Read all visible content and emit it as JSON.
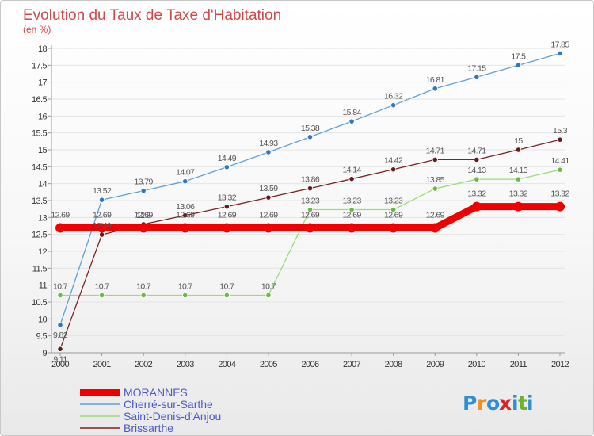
{
  "chart_data": {
    "type": "line",
    "title": "Evolution du Taux de Taxe d'Habitation",
    "unit_label": "(en %)",
    "ylim": [
      9,
      18
    ],
    "yticks": [
      "9",
      "9.5",
      "10",
      "10.5",
      "11",
      "11.5",
      "12",
      "12.5",
      "13",
      "13.5",
      "14",
      "14.5",
      "15",
      "15.5",
      "16",
      "16.5",
      "17",
      "17.5",
      "18"
    ],
    "x": [
      "2000",
      "2001",
      "2002",
      "2003",
      "2004",
      "2005",
      "2006",
      "2007",
      "2008",
      "2009",
      "2010",
      "2011",
      "2012"
    ],
    "series": [
      {
        "name": "MORANNES",
        "color": "#ee0000",
        "thick": true,
        "values": [
          12.69,
          12.69,
          12.69,
          12.69,
          12.69,
          12.69,
          12.69,
          12.69,
          12.69,
          12.69,
          13.32,
          13.32,
          13.32
        ],
        "labels": [
          "12.69",
          "12.69",
          "12.69",
          "12.69",
          "12.69",
          "12.69",
          "12.69",
          "12.69",
          "12.69",
          "12.69",
          "13.32",
          "13.32",
          "13.32"
        ]
      },
      {
        "name": "Cherré-sur-Sarthe",
        "color": "#5ea2d8",
        "marker": "#2f78c4",
        "values": [
          9.82,
          13.52,
          13.79,
          14.07,
          14.49,
          14.93,
          15.38,
          15.84,
          16.32,
          16.81,
          17.15,
          17.5,
          17.85
        ],
        "labels": [
          "9.82",
          "13.52",
          "13.79",
          "14.07",
          "14.49",
          "14.93",
          "15.38",
          "15.84",
          "16.32",
          "16.81",
          "17.15",
          "17.5",
          "17.85"
        ]
      },
      {
        "name": "Saint-Denis-d'Anjou",
        "color": "#99dd77",
        "marker": "#66bb44",
        "values": [
          10.7,
          10.7,
          10.7,
          10.7,
          10.7,
          10.7,
          13.23,
          13.23,
          13.23,
          13.85,
          14.13,
          14.13,
          14.41
        ],
        "labels": [
          "10.7",
          "10.7",
          "10.7",
          "10.7",
          "10.7",
          "10.7",
          "13.23",
          "13.23",
          "13.23",
          "13.85",
          "14.13",
          "14.13",
          "14.41"
        ]
      },
      {
        "name": "Brissarthe",
        "color": "#7a2424",
        "marker": "#661a1a",
        "values": [
          9.11,
          12.49,
          12.8,
          13.06,
          13.32,
          13.59,
          13.86,
          14.14,
          14.42,
          14.71,
          14.71,
          15.0,
          15.3
        ],
        "labels": [
          "9.11",
          "12.49",
          "12.8",
          "13.06",
          "13.32",
          "13.59",
          "13.86",
          "14.14",
          "14.42",
          "14.71",
          "14.71",
          "15",
          "15.3"
        ]
      }
    ]
  },
  "legend": {
    "items": [
      {
        "label": "MORANNES",
        "color": "#ee0000"
      },
      {
        "label": "Cherré-sur-Sarthe",
        "color": "#5ea2d8"
      },
      {
        "label": "Saint-Denis-d'Anjou",
        "color": "#99dd77"
      },
      {
        "label": "Brissarthe",
        "color": "#7a2424"
      }
    ]
  },
  "logo": {
    "letters": [
      "P",
      "r",
      "o",
      "x",
      "i",
      "t",
      "i"
    ],
    "colors": [
      "#2e8fd8",
      "#f09020",
      "#2e8fd8",
      "#e02020",
      "#2e8fd8",
      "#70b030",
      "#2e8fd8"
    ]
  }
}
